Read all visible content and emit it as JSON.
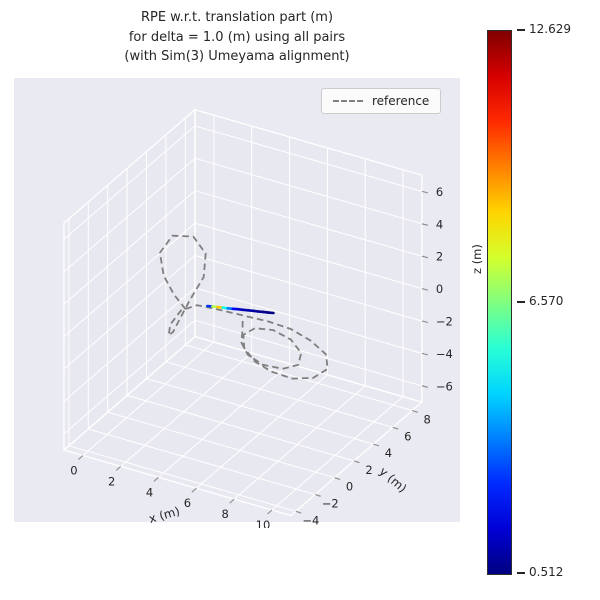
{
  "title": {
    "line1": "RPE w.r.t. translation part (m)",
    "line2": "for delta = 1.0 (m) using all pairs",
    "line3": "(with Sim(3) Umeyama alignment)"
  },
  "legend": {
    "label": "reference"
  },
  "colors": {
    "background": "#ffffff",
    "axes_bg": "#eaeaf2",
    "pane": "#e8e8f0",
    "grid": "#ffffff",
    "tick": "#8a8a8a",
    "reference_line": "#7f7f7f",
    "text": "#262626",
    "colorbar_outline": "#2e2e2e"
  },
  "chart_data": {
    "type": "line",
    "subtype": "3d-trajectory",
    "title": "RPE w.r.t. translation part (m) for delta = 1.0 (m) using all pairs (with Sim(3) Umeyama alignment)",
    "xlabel": "x (m)",
    "ylabel": "y (m)",
    "zlabel": "z (m)",
    "x_ticks": [
      0,
      2,
      4,
      6,
      8,
      10
    ],
    "y_ticks": [
      -4,
      -2,
      0,
      2,
      4,
      6,
      8
    ],
    "z_ticks": [
      -6,
      -4,
      -2,
      0,
      2,
      4,
      6
    ],
    "xlim": [
      -1,
      11
    ],
    "ylim": [
      -4.5,
      9
    ],
    "zlim": [
      -7,
      7
    ],
    "grid": true,
    "legend_position": "upper right",
    "view": {
      "elev": 30,
      "azim": -60
    },
    "series": [
      {
        "name": "reference",
        "style": "dashed",
        "color": "#7f7f7f",
        "points": [
          [
            2.2,
            1.8,
            -0.5
          ],
          [
            1.9,
            1.2,
            0.6
          ],
          [
            1.5,
            0.9,
            1.8
          ],
          [
            1.2,
            1.1,
            3.0
          ],
          [
            1.5,
            1.8,
            3.8
          ],
          [
            2.3,
            2.4,
            3.7
          ],
          [
            2.9,
            2.5,
            2.8
          ],
          [
            3.0,
            2.1,
            1.6
          ],
          [
            2.6,
            1.5,
            0.4
          ],
          [
            2.3,
            1.1,
            -0.6
          ],
          [
            2.0,
            0.9,
            -1.5
          ],
          [
            1.6,
            1.2,
            -2.0
          ],
          [
            1.4,
            1.8,
            -1.7
          ],
          [
            1.7,
            2.3,
            -1.0
          ],
          [
            2.4,
            2.6,
            -0.6
          ],
          [
            3.4,
            2.9,
            -0.7
          ],
          [
            4.5,
            3.3,
            -0.9
          ],
          [
            5.6,
            3.7,
            -1.1
          ],
          [
            6.7,
            3.9,
            -1.3
          ],
          [
            7.8,
            3.8,
            -1.6
          ],
          [
            8.8,
            3.4,
            -1.9
          ],
          [
            9.3,
            2.6,
            -2.2
          ],
          [
            9.0,
            1.7,
            -2.4
          ],
          [
            8.2,
            1.1,
            -2.4
          ],
          [
            7.2,
            0.9,
            -2.2
          ],
          [
            6.2,
            1.1,
            -2.0
          ],
          [
            5.4,
            1.6,
            -1.7
          ],
          [
            5.0,
            2.3,
            -1.4
          ],
          [
            5.3,
            2.9,
            -1.2
          ],
          [
            6.1,
            3.2,
            -1.2
          ],
          [
            7.1,
            3.1,
            -1.4
          ],
          [
            7.9,
            2.6,
            -1.7
          ],
          [
            8.1,
            1.9,
            -2.0
          ],
          [
            7.6,
            1.3,
            -2.1
          ],
          [
            6.7,
            1.0,
            -2.0
          ],
          [
            5.8,
            1.2,
            -1.8
          ],
          [
            5.2,
            1.7,
            -1.5
          ],
          [
            4.9,
            2.4,
            -1.2
          ],
          [
            4.6,
            3.0,
            -0.9
          ]
        ]
      },
      {
        "name": "rpe",
        "style": "solid",
        "colormap": "jet",
        "points": [
          [
            3.4,
            1.7,
            0.15
          ],
          [
            3.62,
            1.79,
            0.15
          ],
          [
            3.85,
            1.88,
            0.14
          ],
          [
            4.07,
            1.97,
            0.14
          ],
          [
            4.29,
            2.05,
            0.13
          ],
          [
            4.52,
            2.14,
            0.13
          ],
          [
            4.74,
            2.23,
            0.13
          ],
          [
            4.96,
            2.32,
            0.12
          ],
          [
            5.18,
            2.41,
            0.12
          ],
          [
            5.41,
            2.5,
            0.12
          ],
          [
            5.63,
            2.58,
            0.11
          ],
          [
            5.85,
            2.67,
            0.11
          ],
          [
            6.08,
            2.76,
            0.1
          ],
          [
            6.3,
            2.85,
            0.1
          ]
        ],
        "values": [
          2.2,
          3.0,
          11.5,
          6.0,
          4.5,
          2.5,
          1.6,
          1.2,
          1.0,
          0.9,
          0.8,
          0.7,
          0.6,
          0.55
        ]
      }
    ],
    "colorbar": {
      "colormap": "jet",
      "min": 0.512,
      "mid": 6.57,
      "max": 12.629,
      "labels": [
        "12.629",
        "6.570",
        "0.512"
      ]
    }
  }
}
